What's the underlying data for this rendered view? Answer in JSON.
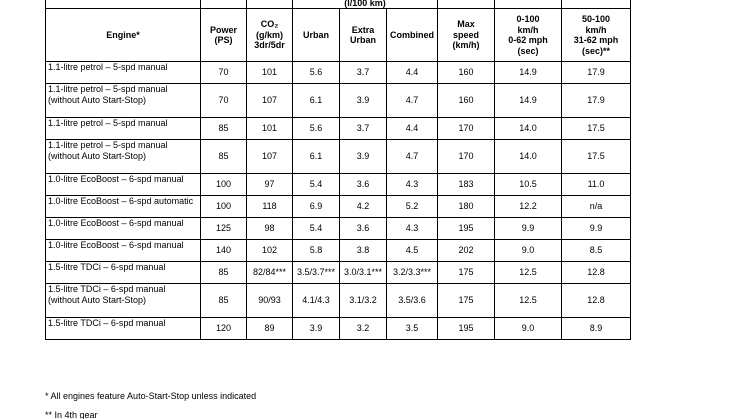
{
  "table": {
    "group_header": "(l/100 km)",
    "columns": [
      [
        "Engine*"
      ],
      [
        "Power",
        "(PS)"
      ],
      [
        "CO₂",
        "(g/km)",
        "3dr/5dr"
      ],
      [
        "Urban"
      ],
      [
        "Extra",
        "Urban"
      ],
      [
        "Combined"
      ],
      [
        "Max",
        "speed",
        "(km/h)"
      ],
      [
        "0-100",
        "km/h",
        "0-62 mph",
        "(sec)"
      ],
      [
        "50-100",
        "km/h",
        "31-62 mph",
        "(sec)**"
      ]
    ],
    "rows": [
      [
        "1.1-litre petrol – 5-spd manual",
        "70",
        "101",
        "5.6",
        "3.7",
        "4.4",
        "160",
        "14.9",
        "17.9"
      ],
      [
        "1.1-litre petrol – 5-spd manual (without Auto Start-Stop)",
        "70",
        "107",
        "6.1",
        "3.9",
        "4.7",
        "160",
        "14.9",
        "17.9"
      ],
      [
        "1.1-litre petrol – 5-spd manual",
        "85",
        "101",
        "5.6",
        "3.7",
        "4.4",
        "170",
        "14.0",
        "17.5"
      ],
      [
        "1.1-litre petrol – 5-spd manual (without Auto Start-Stop)",
        "85",
        "107",
        "6.1",
        "3.9",
        "4.7",
        "170",
        "14.0",
        "17.5"
      ],
      [
        "1.0-litre EcoBoost – 6-spd manual",
        "100",
        "97",
        "5.4",
        "3.6",
        "4.3",
        "183",
        "10.5",
        "11.0"
      ],
      [
        "1.0-litre EcoBoost – 6-spd automatic",
        "100",
        "118",
        "6.9",
        "4.2",
        "5.2",
        "180",
        "12.2",
        "n/a"
      ],
      [
        "1.0-litre EcoBoost – 6-spd manual",
        "125",
        "98",
        "5.4",
        "3.6",
        "4.3",
        "195",
        "9.9",
        "9.9"
      ],
      [
        "1.0-litre EcoBoost – 6-spd manual",
        "140",
        "102",
        "5.8",
        "3.8",
        "4.5",
        "202",
        "9.0",
        "8.5"
      ],
      [
        "1.5-litre TDCi – 6-spd manual",
        "85",
        "82/84***",
        "3.5/3.7***",
        "3.0/3.1***",
        "3.2/3.3***",
        "175",
        "12.5",
        "12.8"
      ],
      [
        "1.5-litre TDCi – 6-spd manual (without Auto Start-Stop)",
        "85",
        "90/93",
        "4.1/4.3",
        "3.1/3.2",
        "3.5/3.6",
        "175",
        "12.5",
        "12.8"
      ],
      [
        "1.5-litre TDCi – 6-spd manual",
        "120",
        "89",
        "3.9",
        "3.2",
        "3.5",
        "195",
        "9.0",
        "8.9"
      ]
    ]
  },
  "footnotes": [
    "* All engines feature Auto-Start-Stop unless indicated",
    "** In 4th gear"
  ]
}
